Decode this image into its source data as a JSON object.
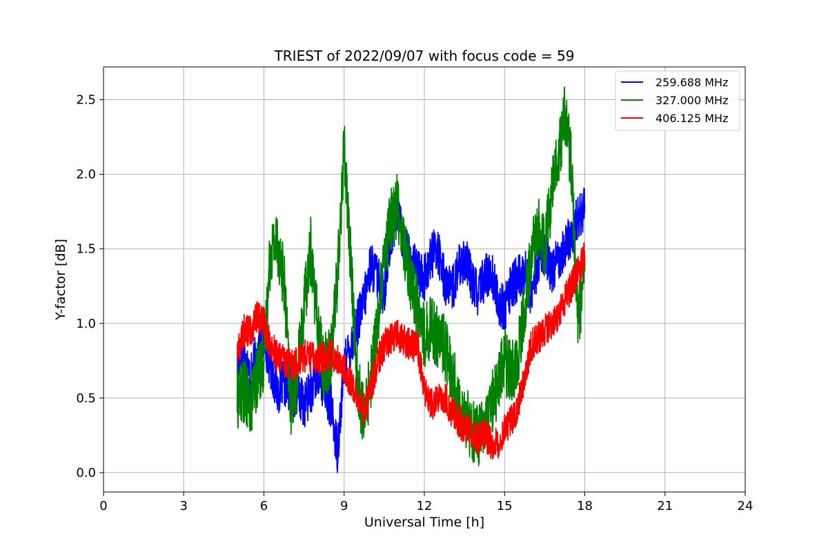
{
  "chart_data": {
    "type": "line",
    "title": "TRIEST of 2022/09/07 with focus code = 59",
    "xlabel": "Universal Time [h]",
    "ylabel": "Y-factor [dB]",
    "xlim": [
      0,
      24
    ],
    "ylim": [
      -0.13,
      2.72
    ],
    "xticks": [
      0,
      3,
      6,
      9,
      12,
      15,
      18,
      21,
      24
    ],
    "yticks": [
      0.0,
      0.5,
      1.0,
      1.5,
      2.0,
      2.5
    ],
    "ytick_labels": [
      "0.0",
      "0.5",
      "1.0",
      "1.5",
      "2.0",
      "2.5"
    ],
    "grid": true,
    "legend_position": "top-right",
    "series": [
      {
        "name": "259.688 MHz",
        "color": "#0000ff",
        "x": [
          5.0,
          5.25,
          5.5,
          5.75,
          6.0,
          6.25,
          6.5,
          6.75,
          7.0,
          7.25,
          7.5,
          7.75,
          8.0,
          8.25,
          8.5,
          8.75,
          9.0,
          9.25,
          9.5,
          9.75,
          10.0,
          10.25,
          10.5,
          10.75,
          11.0,
          11.25,
          11.5,
          11.75,
          12.0,
          12.25,
          12.5,
          12.75,
          13.0,
          13.25,
          13.5,
          13.75,
          14.0,
          14.25,
          14.5,
          14.75,
          15.0,
          15.25,
          15.5,
          15.75,
          16.0,
          16.25,
          16.5,
          16.75,
          17.0,
          17.25,
          17.5,
          17.75,
          18.0
        ],
        "y": [
          0.75,
          0.8,
          0.62,
          0.82,
          0.9,
          0.72,
          0.55,
          0.6,
          0.55,
          0.52,
          0.45,
          0.55,
          0.65,
          0.58,
          0.45,
          0.15,
          0.7,
          0.85,
          1.0,
          1.15,
          1.4,
          1.3,
          1.2,
          1.6,
          1.72,
          1.55,
          1.4,
          1.35,
          1.3,
          1.45,
          1.5,
          1.3,
          1.2,
          1.35,
          1.45,
          1.3,
          1.2,
          1.3,
          1.35,
          1.15,
          1.1,
          1.25,
          1.3,
          1.35,
          1.2,
          1.4,
          1.5,
          1.35,
          1.45,
          1.5,
          1.6,
          1.7,
          1.8
        ]
      },
      {
        "name": "327.000 MHz",
        "color": "#008000",
        "x": [
          5.0,
          5.25,
          5.5,
          5.75,
          6.0,
          6.25,
          6.5,
          6.75,
          7.0,
          7.25,
          7.5,
          7.75,
          8.0,
          8.25,
          8.5,
          8.75,
          9.0,
          9.25,
          9.5,
          9.75,
          10.0,
          10.25,
          10.5,
          10.75,
          11.0,
          11.25,
          11.5,
          11.75,
          12.0,
          12.25,
          12.5,
          12.75,
          13.0,
          13.25,
          13.5,
          13.75,
          14.0,
          14.25,
          14.5,
          14.75,
          15.0,
          15.25,
          15.5,
          15.75,
          16.0,
          16.25,
          16.5,
          16.75,
          17.0,
          17.25,
          17.5,
          17.75,
          18.0
        ],
        "y": [
          0.5,
          0.55,
          0.45,
          0.65,
          0.75,
          1.5,
          1.55,
          1.3,
          0.45,
          0.65,
          1.1,
          1.5,
          1.0,
          0.7,
          0.8,
          1.3,
          2.2,
          1.4,
          0.6,
          0.35,
          0.65,
          1.0,
          1.4,
          1.7,
          1.8,
          1.5,
          1.3,
          1.1,
          0.9,
          1.0,
          0.9,
          0.85,
          0.7,
          0.5,
          0.4,
          0.3,
          0.25,
          0.3,
          0.45,
          0.6,
          0.75,
          0.65,
          0.8,
          1.1,
          1.45,
          1.65,
          1.5,
          1.85,
          2.1,
          2.4,
          2.05,
          1.0,
          1.35
        ]
      },
      {
        "name": "406.125 MHz",
        "color": "#ff0000",
        "x": [
          5.0,
          5.25,
          5.5,
          5.75,
          6.0,
          6.25,
          6.5,
          6.75,
          7.0,
          7.25,
          7.5,
          7.75,
          8.0,
          8.25,
          8.5,
          8.75,
          9.0,
          9.25,
          9.5,
          9.75,
          10.0,
          10.25,
          10.5,
          10.75,
          11.0,
          11.25,
          11.5,
          11.75,
          12.0,
          12.25,
          12.5,
          12.75,
          13.0,
          13.25,
          13.5,
          13.75,
          14.0,
          14.25,
          14.5,
          14.75,
          15.0,
          15.25,
          15.5,
          15.75,
          16.0,
          16.25,
          16.5,
          16.75,
          17.0,
          17.25,
          17.5,
          17.75,
          18.0
        ],
        "y": [
          0.8,
          0.95,
          0.95,
          1.05,
          1.0,
          0.85,
          0.78,
          0.75,
          0.72,
          0.75,
          0.78,
          0.78,
          0.75,
          0.78,
          0.8,
          0.76,
          0.7,
          0.6,
          0.5,
          0.42,
          0.55,
          0.75,
          0.85,
          0.9,
          0.92,
          0.88,
          0.85,
          0.85,
          0.55,
          0.45,
          0.48,
          0.5,
          0.42,
          0.35,
          0.3,
          0.28,
          0.22,
          0.25,
          0.2,
          0.2,
          0.3,
          0.35,
          0.45,
          0.65,
          0.85,
          0.9,
          0.95,
          1.0,
          1.05,
          1.15,
          1.25,
          1.35,
          1.45
        ]
      }
    ]
  }
}
